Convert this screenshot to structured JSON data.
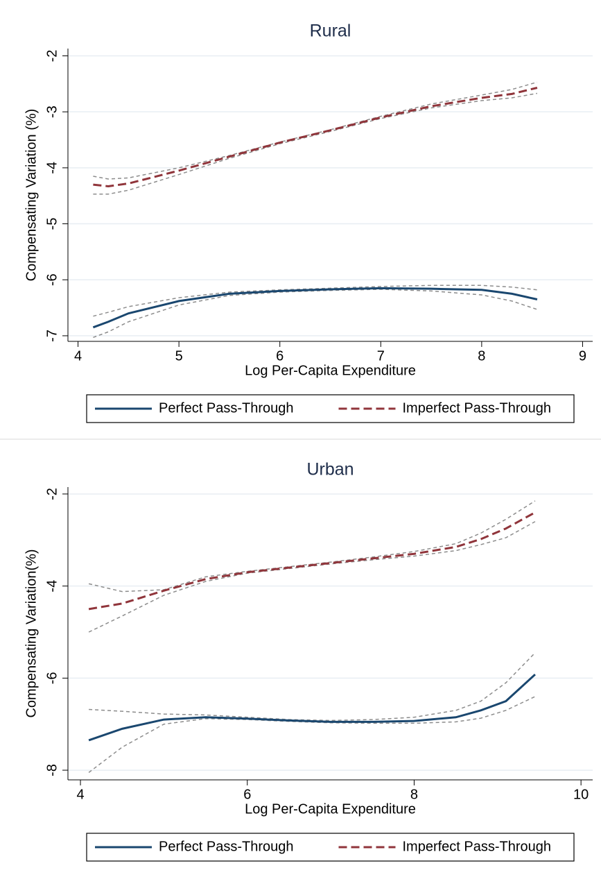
{
  "chart_data": [
    {
      "type": "line",
      "title": "Rural",
      "xlabel": "Log Per-Capita Expenditure",
      "ylabel": "Compensating Variation (%)",
      "x": [
        4.15,
        4.3,
        4.5,
        5,
        5.5,
        6,
        6.5,
        7,
        7.5,
        8,
        8.3,
        8.55
      ],
      "series": [
        {
          "name": "Perfect Pass-Through",
          "color": "#1a476f",
          "linestyle": "solid",
          "values": [
            -6.85,
            -6.75,
            -6.6,
            -6.38,
            -6.25,
            -6.2,
            -6.17,
            -6.15,
            -6.16,
            -6.18,
            -6.25,
            -6.35
          ]
        },
        {
          "name": "Imperfect Pass-Through",
          "color": "#90353b",
          "linestyle": "dashed",
          "values": [
            -4.3,
            -4.33,
            -4.28,
            -4.05,
            -3.8,
            -3.55,
            -3.33,
            -3.1,
            -2.9,
            -2.75,
            -2.68,
            -2.57
          ]
        },
        {
          "color": "#8c8c8c",
          "linestyle": "dashed",
          "values": [
            -6.65,
            -6.58,
            -6.48,
            -6.32,
            -6.22,
            -6.18,
            -6.15,
            -6.12,
            -6.1,
            -6.1,
            -6.13,
            -6.18
          ]
        },
        {
          "color": "#8c8c8c",
          "linestyle": "dashed",
          "values": [
            -7.03,
            -6.93,
            -6.75,
            -6.45,
            -6.28,
            -6.22,
            -6.19,
            -6.17,
            -6.2,
            -6.27,
            -6.38,
            -6.53
          ]
        },
        {
          "color": "#8c8c8c",
          "linestyle": "dashed",
          "values": [
            -4.15,
            -4.2,
            -4.18,
            -4.0,
            -3.78,
            -3.54,
            -3.32,
            -3.08,
            -2.86,
            -2.7,
            -2.6,
            -2.47
          ]
        },
        {
          "color": "#8c8c8c",
          "linestyle": "dashed",
          "values": [
            -4.47,
            -4.47,
            -4.4,
            -4.12,
            -3.83,
            -3.57,
            -3.35,
            -3.12,
            -2.93,
            -2.8,
            -2.75,
            -2.67
          ]
        }
      ],
      "xlim": [
        3.9,
        9.1
      ],
      "xticks": [
        4,
        5,
        6,
        7,
        8,
        9
      ],
      "ylim": [
        -7.1,
        -1.87
      ],
      "yticks": [
        -2,
        -3,
        -4,
        -5,
        -6,
        -7
      ],
      "grid": true,
      "legend": "bottom"
    },
    {
      "type": "line",
      "title": "Urban",
      "xlabel": "Log Per-Capita Expenditure",
      "ylabel": "Compensating Variation(%)",
      "x": [
        4.1,
        4.5,
        5,
        5.5,
        6,
        6.5,
        7,
        7.5,
        8,
        8.5,
        8.8,
        9.1,
        9.45
      ],
      "series": [
        {
          "name": "Perfect Pass-Through",
          "color": "#1a476f",
          "linestyle": "solid",
          "values": [
            -7.35,
            -7.1,
            -6.9,
            -6.85,
            -6.88,
            -6.92,
            -6.95,
            -6.95,
            -6.93,
            -6.85,
            -6.7,
            -6.5,
            -5.92
          ]
        },
        {
          "name": "Imperfect Pass-Through",
          "color": "#90353b",
          "linestyle": "dashed",
          "values": [
            -4.5,
            -4.38,
            -4.1,
            -3.85,
            -3.7,
            -3.6,
            -3.5,
            -3.4,
            -3.3,
            -3.15,
            -2.98,
            -2.75,
            -2.4
          ]
        },
        {
          "color": "#8c8c8c",
          "linestyle": "dashed",
          "values": [
            -6.68,
            -6.72,
            -6.78,
            -6.8,
            -6.85,
            -6.9,
            -6.92,
            -6.9,
            -6.85,
            -6.7,
            -6.5,
            -6.1,
            -5.45
          ]
        },
        {
          "color": "#8c8c8c",
          "linestyle": "dashed",
          "values": [
            -8.05,
            -7.5,
            -7.0,
            -6.88,
            -6.9,
            -6.94,
            -6.97,
            -6.98,
            -6.98,
            -6.95,
            -6.87,
            -6.7,
            -6.4
          ]
        },
        {
          "color": "#8c8c8c",
          "linestyle": "dashed",
          "values": [
            -3.95,
            -4.12,
            -4.08,
            -3.8,
            -3.68,
            -3.58,
            -3.48,
            -3.37,
            -3.25,
            -3.08,
            -2.85,
            -2.55,
            -2.15
          ]
        },
        {
          "color": "#8c8c8c",
          "linestyle": "dashed",
          "values": [
            -5.0,
            -4.65,
            -4.2,
            -3.9,
            -3.72,
            -3.62,
            -3.52,
            -3.43,
            -3.35,
            -3.23,
            -3.1,
            -2.95,
            -2.6
          ]
        }
      ],
      "xlim": [
        3.85,
        10.14
      ],
      "xticks": [
        4,
        6,
        8,
        10
      ],
      "ylim": [
        -8.21,
        -1.85
      ],
      "yticks": [
        -2,
        -4,
        -6,
        -8
      ],
      "grid": true,
      "legend": "bottom"
    }
  ]
}
